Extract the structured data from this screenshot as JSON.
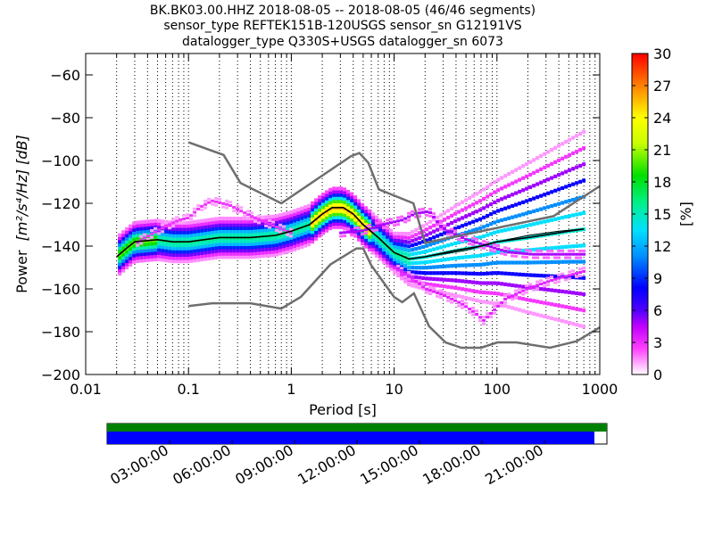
{
  "title_lines": [
    "BK.BK03.00.HHZ   2018-08-05 -- 2018-08-05  (46/46 segments)",
    "sensor_type REFTEK151B-120USGS sensor_sn G12191VS",
    "datalogger_type Q330S+USGS datalogger_sn 6073"
  ],
  "colors": {
    "noise_model": "#6e6e6e",
    "mode_line": "#000000",
    "grid": "#000000",
    "coverage_green": "#008000",
    "coverage_blue": "#0000ff"
  },
  "chart_data": {
    "type": "heatmap",
    "xlabel": "Period [s]",
    "ylabel_text": "Power",
    "ylabel_math": "[m²/s⁴/Hz] [dB]",
    "xscale": "log",
    "xlim": [
      0.01,
      1000
    ],
    "ylim": [
      -200,
      -50
    ],
    "xticks": [
      {
        "value": 0.01,
        "label": "0.01"
      },
      {
        "value": 0.1,
        "label": "0.1"
      },
      {
        "value": 1,
        "label": "1"
      },
      {
        "value": 10,
        "label": "10"
      },
      {
        "value": 100,
        "label": "100"
      },
      {
        "value": 1000,
        "label": "1000"
      }
    ],
    "yticks": [
      {
        "value": -200,
        "label": "−200"
      },
      {
        "value": -180,
        "label": "−180"
      },
      {
        "value": -160,
        "label": "−160"
      },
      {
        "value": -140,
        "label": "−140"
      },
      {
        "value": -120,
        "label": "−120"
      },
      {
        "value": -100,
        "label": "−100"
      },
      {
        "value": -80,
        "label": "−80"
      },
      {
        "value": -60,
        "label": "−60"
      }
    ],
    "grid": "vertical dotted at log minor ticks",
    "colorbar": {
      "label": "[%]",
      "range": [
        0,
        30
      ],
      "ticks": [
        "0",
        "3",
        "6",
        "9",
        "12",
        "15",
        "18",
        "21",
        "24",
        "27",
        "30"
      ],
      "colormap": "pqlx"
    },
    "noise_models": [
      {
        "name": "high",
        "points": [
          [
            0.1,
            -91.5
          ],
          [
            0.22,
            -97.4
          ],
          [
            0.32,
            -110.5
          ],
          [
            0.8,
            -120
          ],
          [
            3.8,
            -98
          ],
          [
            4.6,
            -96.5
          ],
          [
            5.6,
            -101
          ],
          [
            7.1,
            -113.5
          ],
          [
            15.4,
            -120
          ],
          [
            20,
            -138.5
          ],
          [
            354.8,
            -126
          ],
          [
            1000,
            -112
          ]
        ]
      },
      {
        "name": "low",
        "points": [
          [
            0.1,
            -168
          ],
          [
            0.17,
            -166.7
          ],
          [
            0.4,
            -166.7
          ],
          [
            0.8,
            -169.2
          ],
          [
            1.24,
            -163.7
          ],
          [
            2.4,
            -148.6
          ],
          [
            4.3,
            -141.1
          ],
          [
            5,
            -141.1
          ],
          [
            6,
            -149
          ],
          [
            10,
            -163.8
          ],
          [
            12,
            -166.2
          ],
          [
            15.6,
            -162.1
          ],
          [
            21.9,
            -177.5
          ],
          [
            31.6,
            -185
          ],
          [
            45,
            -187.5
          ],
          [
            70,
            -187.5
          ],
          [
            101,
            -185
          ],
          [
            154,
            -185
          ],
          [
            328,
            -187.5
          ],
          [
            600,
            -184.4
          ],
          [
            1000,
            -178
          ]
        ]
      }
    ],
    "mode_line": [
      [
        0.02,
        -145
      ],
      [
        0.025,
        -141
      ],
      [
        0.03,
        -138
      ],
      [
        0.05,
        -137
      ],
      [
        0.07,
        -138
      ],
      [
        0.1,
        -138
      ],
      [
        0.2,
        -136
      ],
      [
        0.4,
        -136
      ],
      [
        0.7,
        -135
      ],
      [
        1,
        -133
      ],
      [
        1.5,
        -130
      ],
      [
        2,
        -125
      ],
      [
        2.5,
        -122
      ],
      [
        3.2,
        -122
      ],
      [
        4,
        -125
      ],
      [
        5,
        -130
      ],
      [
        7,
        -136
      ],
      [
        10,
        -143
      ],
      [
        14,
        -146
      ],
      [
        20,
        -145
      ],
      [
        40,
        -142
      ],
      [
        70,
        -140
      ],
      [
        100,
        -138
      ],
      [
        200,
        -136
      ],
      [
        500,
        -133
      ],
      [
        700,
        -132
      ]
    ],
    "mean_line": [
      [
        20,
        -145
      ],
      [
        50,
        -142
      ],
      [
        100,
        -138
      ],
      [
        200,
        -135
      ],
      [
        400,
        -133
      ],
      [
        700,
        -132
      ]
    ],
    "density": {
      "core_pct": 16,
      "main_band": [
        [
          0.02,
          -145
        ],
        [
          0.025,
          -141
        ],
        [
          0.03,
          -138
        ],
        [
          0.05,
          -137
        ],
        [
          0.07,
          -138
        ],
        [
          0.1,
          -138
        ],
        [
          0.2,
          -136
        ],
        [
          0.4,
          -136
        ],
        [
          0.7,
          -135
        ],
        [
          1,
          -133
        ],
        [
          1.5,
          -130
        ],
        [
          2,
          -125
        ],
        [
          2.5,
          -122
        ],
        [
          3.2,
          -122
        ],
        [
          4,
          -125
        ],
        [
          5,
          -130
        ],
        [
          7,
          -136
        ],
        [
          10,
          -143
        ],
        [
          14,
          -146
        ],
        [
          20,
          -145
        ],
        [
          40,
          -142
        ],
        [
          70,
          -140
        ],
        [
          100,
          -138
        ],
        [
          200,
          -136
        ],
        [
          500,
          -133
        ],
        [
          700,
          -132
        ]
      ],
      "upper_band": [
        [
          0.03,
          -139
        ],
        [
          0.05,
          -133
        ],
        [
          0.08,
          -128
        ],
        [
          0.1,
          -127
        ],
        [
          0.13,
          -122
        ],
        [
          0.17,
          -119
        ],
        [
          0.25,
          -121
        ],
        [
          0.4,
          -126
        ],
        [
          0.7,
          -131
        ],
        [
          1,
          -134
        ]
      ],
      "mid_band": [
        [
          3,
          -134
        ],
        [
          5,
          -133
        ],
        [
          8,
          -130
        ],
        [
          12,
          -128
        ],
        [
          16,
          -125
        ],
        [
          22,
          -124
        ],
        [
          30,
          -132
        ],
        [
          50,
          -137
        ],
        [
          80,
          -140
        ],
        [
          130,
          -143
        ],
        [
          220,
          -144
        ],
        [
          400,
          -144
        ],
        [
          700,
          -144
        ]
      ],
      "lower_band": [
        [
          10,
          -150
        ],
        [
          15,
          -155
        ],
        [
          20,
          -160
        ],
        [
          30,
          -163
        ],
        [
          45,
          -167
        ],
        [
          60,
          -171
        ],
        [
          75,
          -175
        ],
        [
          90,
          -171
        ],
        [
          120,
          -165
        ],
        [
          200,
          -160
        ],
        [
          350,
          -156
        ],
        [
          700,
          -152
        ]
      ]
    }
  },
  "coverage": {
    "time_ticks": [
      "03:00:00",
      "06:00:00",
      "09:00:00",
      "12:00:00",
      "15:00:00",
      "18:00:00",
      "21:00:00"
    ],
    "green_fraction": 1.0,
    "blue_fraction": 0.975
  }
}
